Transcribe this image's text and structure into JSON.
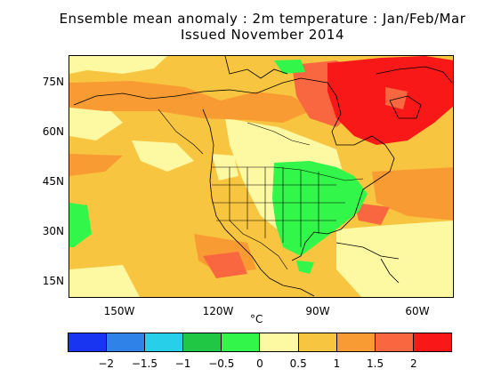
{
  "title": {
    "line1": "Ensemble mean anomaly : 2m temperature : Jan/Feb/Mar",
    "line2": "Issued November 2014"
  },
  "map": {
    "region": "North America",
    "lat_labels": [
      "75N",
      "60N",
      "45N",
      "30N",
      "15N"
    ],
    "lon_labels": [
      "150W",
      "120W",
      "90W",
      "60W"
    ],
    "unit": "°C"
  },
  "legend": {
    "colors": [
      "#1a35f2",
      "#2f82e8",
      "#27d0e8",
      "#20c744",
      "#33f64a",
      "#fdf8a2",
      "#f8c540",
      "#f99b33",
      "#f96740",
      "#f81818"
    ],
    "tick_labels": [
      "−2",
      "−1.5",
      "−1",
      "−0.5",
      "0",
      "0.5",
      "1",
      "1.5",
      "2"
    ]
  },
  "anomaly_colors": {
    "light_yellow": "#fdf8a2",
    "yellow_orange": "#f8c540",
    "orange": "#f99b33",
    "dark_orange": "#f96740",
    "red": "#f81818",
    "green": "#33f64a"
  }
}
